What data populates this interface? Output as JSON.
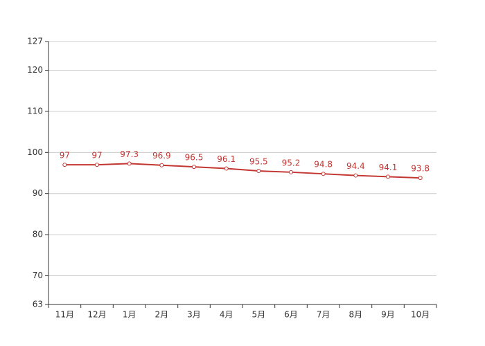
{
  "chart_data": {
    "type": "line",
    "categories": [
      "11月",
      "12月",
      "1月",
      "2月",
      "3月",
      "4月",
      "5月",
      "6月",
      "7月",
      "8月",
      "9月",
      "10月"
    ],
    "values": [
      97,
      97,
      97.3,
      96.9,
      96.5,
      96.1,
      95.5,
      95.2,
      94.8,
      94.4,
      94.1,
      93.8
    ],
    "color": "#c23531",
    "ylim": [
      63,
      127
    ],
    "yticks": [
      63,
      70,
      80,
      90,
      100,
      110,
      120,
      127
    ],
    "grid": true
  }
}
